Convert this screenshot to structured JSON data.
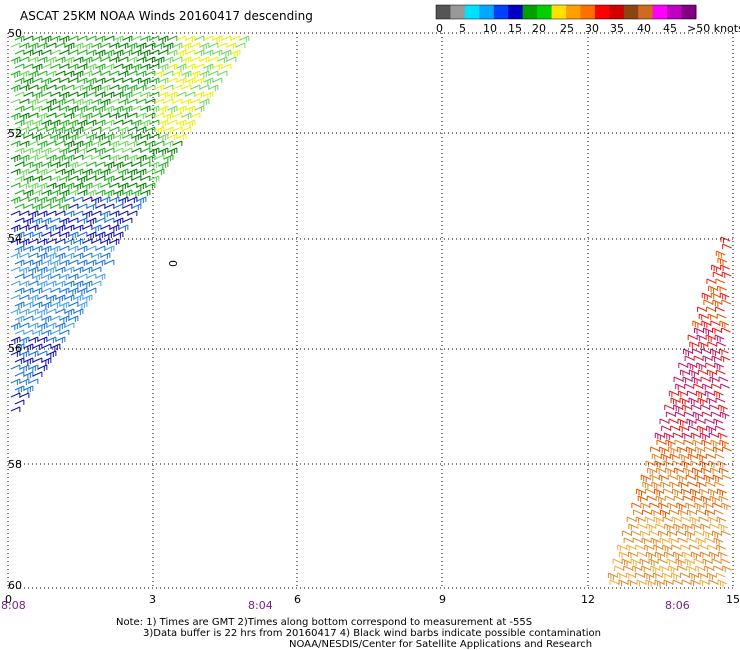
{
  "title": "ASCAT 25KM NOAA Winds 20160417 descending",
  "colorbar": {
    "labels": [
      "0",
      "5",
      "10",
      "15",
      "20",
      "25",
      "30",
      "35",
      "40",
      "45",
      ">50 knots"
    ],
    "colors": [
      "#555555",
      "#999999",
      "#00e0ff",
      "#00a8ff",
      "#0040ff",
      "#0000c0",
      "#00a000",
      "#00d000",
      "#ffe000",
      "#ffa000",
      "#ff7000",
      "#ff0000",
      "#d00000",
      "#8b4513",
      "#d2691e",
      "#ff00ff",
      "#c000c0",
      "#800080"
    ]
  },
  "axes": {
    "x_ticks": [
      "0",
      "3",
      "6",
      "9",
      "12",
      "15"
    ],
    "y_ticks": [
      "50",
      "52",
      "54",
      "56",
      "58",
      "60"
    ],
    "time_labels": [
      "8:08",
      "8:04",
      "8:06"
    ]
  },
  "isolated_label": "0",
  "notes": {
    "line1": "Note: 1) Times are GMT 2)Times along bottom correspond to measurement at -55S",
    "line2": "3)Data buffer is 22 hrs from 20160417 4) Black wind barbs indicate possible contamination",
    "line3": "NOAA/NESDIS/Center for Satellite Applications and Research"
  },
  "swaths": [
    {
      "name": "western",
      "colors": {
        "green_dark": "#008000",
        "green": "#22b022",
        "green_light": "#6fd860",
        "yellow": "#f0f000",
        "blue_dark": "#1010b0",
        "blue": "#1a73d8",
        "blue_light": "#4aa0e8"
      }
    },
    {
      "name": "eastern",
      "colors": {
        "orange": "#e85a00",
        "red": "#e8201a",
        "crimson": "#c0186a",
        "tan": "#e08a30",
        "gold": "#f0b040"
      }
    }
  ]
}
